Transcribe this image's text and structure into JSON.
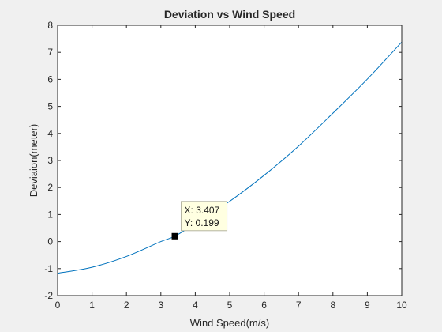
{
  "chart_data": {
    "type": "line",
    "title": "Deviation vs Wind Speed",
    "xlabel": "Wind Speed(m/s)",
    "ylabel": "Deviaion(meter)",
    "xlim": [
      0,
      10
    ],
    "ylim": [
      -2,
      8
    ],
    "x_ticks": [
      0,
      1,
      2,
      3,
      4,
      5,
      6,
      7,
      8,
      9,
      10
    ],
    "y_ticks": [
      -2,
      -1,
      0,
      1,
      2,
      3,
      4,
      5,
      6,
      7,
      8
    ],
    "grid": false,
    "series": [
      {
        "color": "#0072bd",
        "x": [
          0,
          1,
          2,
          3,
          3.407,
          4,
          5,
          6,
          7,
          8,
          9,
          10
        ],
        "y": [
          -1.17,
          -0.95,
          -0.55,
          0.0,
          0.199,
          0.66,
          1.49,
          2.45,
          3.53,
          4.75,
          6.01,
          7.38
        ]
      }
    ],
    "datatip": {
      "x": 3.407,
      "y": 0.199,
      "x_text": "X: 3.407",
      "y_text": "Y: 0.199"
    }
  }
}
